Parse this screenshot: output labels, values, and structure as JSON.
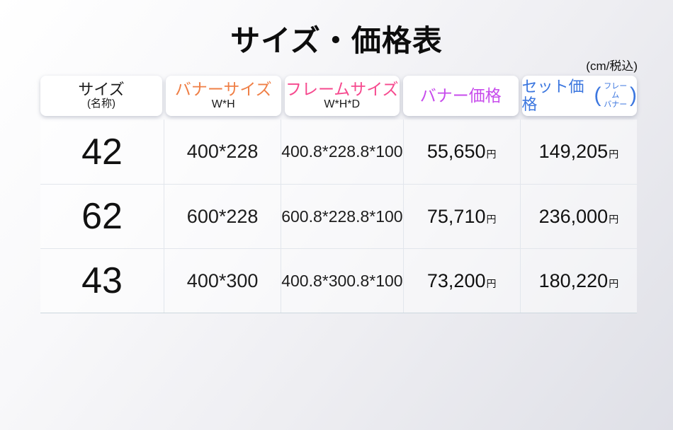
{
  "page": {
    "title": "サイズ・価格表",
    "unit_note": "(cm/税込)"
  },
  "table": {
    "yen_suffix": "円",
    "paren_open": "(",
    "paren_close": ")",
    "columns": [
      {
        "label": "サイズ",
        "sub": "(名称)",
        "color": "#1b1b1b"
      },
      {
        "label": "バナーサイズ",
        "sub": "W*H",
        "color": "#ef7f46"
      },
      {
        "label": "フレームサイズ",
        "sub": "W*H*D",
        "color": "#f6498e"
      },
      {
        "label": "バナー価格",
        "sub": "",
        "color": "#c74bec"
      },
      {
        "label": "セット価格",
        "paren_top": "フレーム",
        "paren_bottom": "バナー",
        "color": "#3b76df"
      }
    ],
    "rows": [
      {
        "size_name": "42",
        "banner_size": "400*228",
        "frame_size": "400.8*228.8*100",
        "banner_price": "55,650",
        "set_price": "149,205"
      },
      {
        "size_name": "62",
        "banner_size": "600*228",
        "frame_size": "600.8*228.8*100",
        "banner_price": "75,710",
        "set_price": "236,000"
      },
      {
        "size_name": "43",
        "banner_size": "400*300",
        "frame_size": "400.8*300.8*100",
        "banner_price": "73,200",
        "set_price": "180,220"
      }
    ]
  },
  "chart_data": {
    "type": "table",
    "title": "サイズ・価格表",
    "unit_note": "(cm/税込)",
    "columns": [
      "サイズ(名称)",
      "バナーサイズ W*H",
      "フレームサイズ W*H*D",
      "バナー価格",
      "セット価格(フレーム・バナー)"
    ],
    "rows": [
      [
        "42",
        "400*228",
        "400.8*228.8*100",
        "55,650円",
        "149,205円"
      ],
      [
        "62",
        "600*228",
        "600.8*228.8*100",
        "75,710円",
        "236,000円"
      ],
      [
        "43",
        "400*300",
        "400.8*300.8*100",
        "73,200円",
        "180,220円"
      ]
    ],
    "header_colors": [
      "#1b1b1b",
      "#ef7f46",
      "#f6498e",
      "#c74bec",
      "#3b76df"
    ]
  }
}
